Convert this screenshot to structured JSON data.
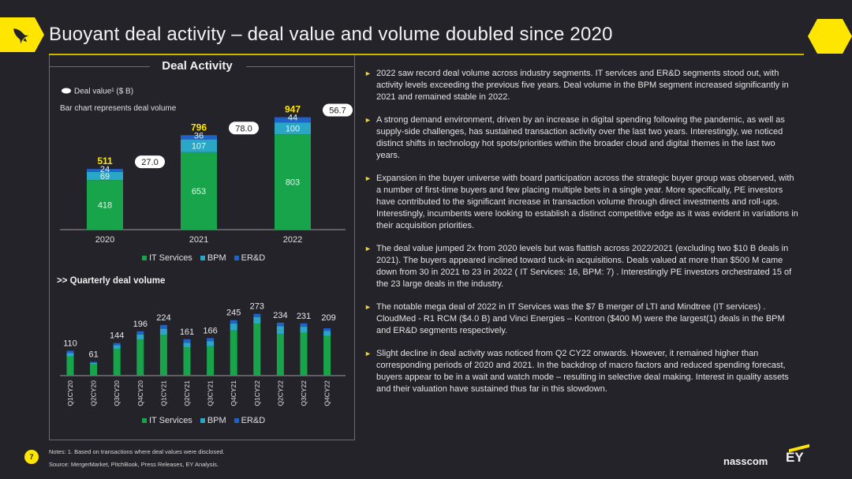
{
  "header": {
    "title": "Buoyant deal activity – deal value and volume doubled since 2020"
  },
  "deal_panel": {
    "title": "Deal Activity",
    "legend_deal_value": "Deal value¹ ($ B)",
    "bar_note": "Bar chart represents deal volume",
    "quarterly_title": ">> Quarterly deal volume"
  },
  "chart_data": [
    {
      "type": "bar",
      "title": "Deal Activity",
      "stacked": true,
      "categories": [
        "2020",
        "2021",
        "2022"
      ],
      "series": [
        {
          "name": "IT Services",
          "values": [
            418,
            653,
            803
          ],
          "color": "#17a44a"
        },
        {
          "name": "BPM",
          "values": [
            69,
            107,
            100
          ],
          "color": "#2aa7c7"
        },
        {
          "name": "ER&D",
          "values": [
            24,
            36,
            44
          ],
          "color": "#1f63c9"
        }
      ],
      "totals": [
        511,
        796,
        947
      ],
      "labels": {
        "IT Services": [
          "418",
          "653",
          "803"
        ],
        "BPM": [
          "69",
          "107",
          "100"
        ],
        "ER&D": [
          "24",
          "36",
          "44"
        ],
        "totals": [
          "511",
          "796",
          "947"
        ],
        "deal_value": [
          "27.0",
          "78.0",
          "56.7"
        ]
      },
      "deal_value_b": [
        27.0,
        78.0,
        56.7
      ],
      "ylim": [
        0,
        960
      ],
      "legend": [
        "IT Services",
        "BPM",
        "ER&D"
      ]
    },
    {
      "type": "bar",
      "title": ">> Quarterly deal volume",
      "stacked": true,
      "categories": [
        "Q1CY20",
        "Q2CY20",
        "Q3CY20",
        "Q4CY20",
        "Q1CY21",
        "Q2CY21",
        "Q3CY21",
        "Q4CY21",
        "Q1CY22",
        "Q2CY22",
        "Q3CY22",
        "Q4CY22"
      ],
      "totals": [
        110,
        61,
        144,
        196,
        224,
        161,
        166,
        245,
        273,
        234,
        231,
        209
      ],
      "total_labels": [
        "110",
        "61",
        "144",
        "196",
        "224",
        "161",
        "166",
        "245",
        "273",
        "234",
        "231",
        "209"
      ],
      "series": [
        {
          "name": "IT Services",
          "values": [
            85,
            50,
            118,
            160,
            180,
            125,
            130,
            200,
            230,
            185,
            190,
            175
          ],
          "color": "#17a44a"
        },
        {
          "name": "BPM",
          "values": [
            15,
            6,
            16,
            22,
            27,
            20,
            22,
            30,
            28,
            33,
            26,
            22
          ],
          "color": "#2aa7c7"
        },
        {
          "name": "ER&D",
          "values": [
            10,
            5,
            10,
            14,
            17,
            16,
            14,
            15,
            15,
            16,
            15,
            12
          ],
          "color": "#1f63c9"
        }
      ],
      "ylim": [
        0,
        290
      ],
      "legend": [
        "IT Services",
        "BPM",
        "ER&D"
      ]
    }
  ],
  "bullets": [
    "2022 saw record deal volume across industry segments. IT services and ER&D segments stood out, with activity levels exceeding the previous five years. Deal volume in the BPM segment increased significantly in 2021 and remained stable in 2022.",
    "A strong demand environment, driven by an increase in digital spending following the pandemic, as well as supply-side challenges, has sustained transaction activity over the last two years. Interestingly, we noticed distinct shifts in technology hot spots/priorities within the broader cloud and digital themes in the last two years.",
    "Expansion in the buyer universe with board participation across the strategic buyer group was observed, with a number of first-time buyers and few placing multiple bets in a single year. More specifically, PE investors have contributed to the significant increase in transaction volume through direct investments and roll-ups. Interestingly, incumbents were looking to establish a distinct competitive edge as it was evident in variations in their acquisition priorities.",
    "The deal value jumped 2x from 2020 levels but was flattish across 2022/2021 (excluding two $10 B deals in 2021). The buyers appeared inclined toward tuck-in acquisitions. Deals valued at more than $500 M came down from 30 in 2021 to 23 in 2022 ( IT Services: 16, BPM: 7) . Interestingly PE investors orchestrated 15 of the 23 large deals in the industry.",
    "The notable mega deal of 2022 in IT Services was the $7 B merger of LTI and Mindtree (IT services) . CloudMed - R1 RCM ($4.0 B) and Vinci Energies – Kontron ($400 M) were the largest(1) deals in the BPM and ER&D segments respectively.",
    "Slight decline in deal activity was noticed from Q2 CY22 onwards. However, it remained higher than corresponding periods of 2020 and 2021. In the backdrop of macro factors and reduced spending forecast, buyers appear to be in a wait and watch mode – resulting in selective deal making. Interest in quality assets and their valuation have sustained thus far in this slowdown."
  ],
  "footer": {
    "notes": "Notes: 1. Based on transactions where deal values were disclosed.",
    "source": "Source: MergerMarket, PitchBook, Press Releases, EY Analysis.",
    "page_number": "7",
    "brand_nasscom": "nasscom",
    "brand_ey": "EY"
  },
  "icons": {
    "rocket": "rocket-icon",
    "hexagon": "hexagon-icon",
    "bullet": "triangle-bullet-icon"
  },
  "colors": {
    "background": "#232329",
    "accent": "#ffe600",
    "it_services": "#17a44a",
    "bpm": "#2aa7c7",
    "erd": "#1f63c9",
    "total_label": "#ffe600"
  }
}
